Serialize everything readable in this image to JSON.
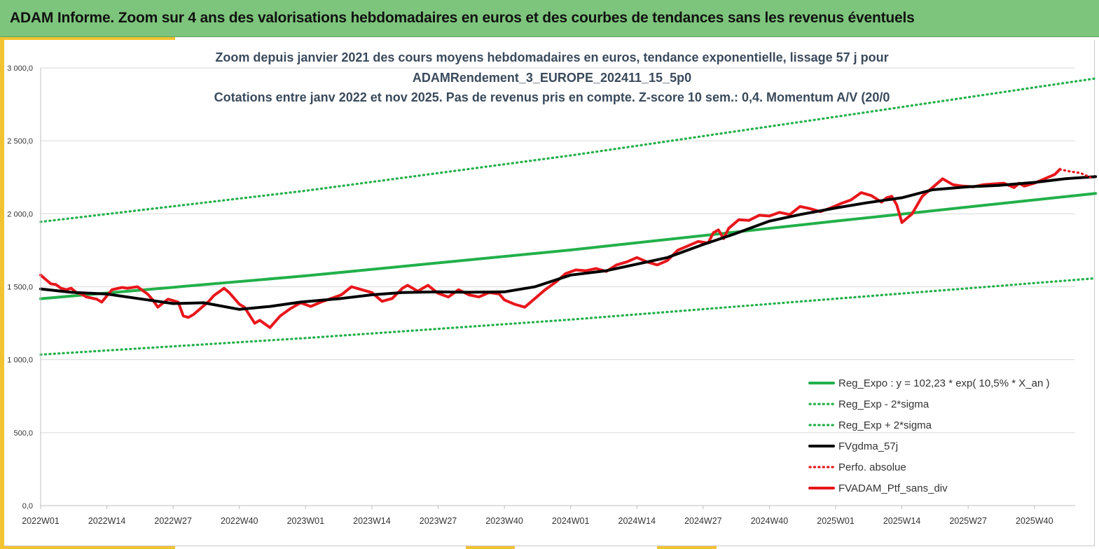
{
  "header": {
    "title": "ADAM Informe. Zoom sur 4 ans des valorisations hebdomadaires en euros et des courbes de tendances sans les revenus éventuels"
  },
  "colors": {
    "banner": "#7dc57c",
    "accent": "#f2c230",
    "reg_expo": "#22b04a",
    "sigma": "#22b04a",
    "moving_avg": "#000000",
    "portfolio": "#e8171c"
  },
  "chart_data": {
    "type": "line",
    "title_lines": [
      "Zoom depuis janvier 2021 des cours moyens hebdomadaires  en euros, tendance exponentielle, lissage 57 j pour",
      "ADAMRendement_3_EUROPE_202411_15_5p0",
      "Cotations  entre janv 2022 et nov 2025. Pas de revenus pris en compte. Z-score 10 sem.: 0,4. Momentum A/V (20/0"
    ],
    "x_start": "2022W01",
    "n_weeks": 204,
    "xticks": [
      "2022W01",
      "2022W14",
      "2022W27",
      "2022W40",
      "2023W01",
      "2023W14",
      "2023W27",
      "2023W40",
      "2024W01",
      "2024W14",
      "2024W27",
      "2024W40",
      "2025W01",
      "2025W14",
      "2025W27",
      "2025W40"
    ],
    "ylim": [
      0,
      3000
    ],
    "yticks": [
      "0,0",
      "500,0",
      "1 000,0",
      "1 500,0",
      "2 000,0",
      "2 500,0",
      "3 000,0"
    ],
    "grid": true,
    "legend_position": "bottom-right",
    "series": [
      {
        "name": "Reg_Expo : y = 102,23 * exp( 10,5% *  X_an )",
        "style": "solid-thick",
        "color": "#22b04a",
        "x": [
          "2022W01",
          "2023W01",
          "2024W01",
          "2025W01",
          "2025W52"
        ],
        "values": [
          1418,
          1575,
          1752,
          1950,
          2140
        ]
      },
      {
        "name": "Reg_Exp - 2*sigma",
        "style": "dotted",
        "color": "#22b04a",
        "x": [
          "2022W01",
          "2023W01",
          "2024W01",
          "2025W01",
          "2025W52"
        ],
        "values": [
          1035,
          1148,
          1275,
          1418,
          1558
        ]
      },
      {
        "name": "Reg_Exp + 2*sigma",
        "style": "dotted",
        "color": "#22b04a",
        "x": [
          "2022W01",
          "2023W01",
          "2024W01",
          "2025W01",
          "2025W52"
        ],
        "values": [
          1945,
          2158,
          2400,
          2665,
          2928
        ]
      },
      {
        "name": "FVgdma_57j",
        "style": "solid-thick",
        "color": "#000000",
        "x": [
          "2022W01",
          "2022W07",
          "2022W14",
          "2022W20",
          "2022W27",
          "2022W33",
          "2022W40",
          "2022W46",
          "2022W52",
          "2023W08",
          "2023W14",
          "2023W20",
          "2023W27",
          "2023W33",
          "2023W40",
          "2023W46",
          "2024W01",
          "2024W08",
          "2024W14",
          "2024W20",
          "2024W27",
          "2024W33",
          "2024W40",
          "2024W46",
          "2025W01",
          "2025W07",
          "2025W14",
          "2025W20",
          "2025W27",
          "2025W33",
          "2025W40",
          "2025W46",
          "2025W52"
        ],
        "values": [
          1485,
          1462,
          1450,
          1420,
          1385,
          1390,
          1345,
          1365,
          1395,
          1420,
          1445,
          1460,
          1465,
          1462,
          1465,
          1500,
          1580,
          1610,
          1655,
          1700,
          1790,
          1860,
          1950,
          1995,
          2040,
          2075,
          2110,
          2165,
          2185,
          2195,
          2215,
          2240,
          2255
        ]
      },
      {
        "name": "Perfo. absolue",
        "style": "dotted",
        "color": "#e8171c",
        "x": [
          "2025W45",
          "2025W47",
          "2025W49",
          "2025W51"
        ],
        "values": [
          2305,
          2290,
          2280,
          2250
        ]
      },
      {
        "name": "FVADAM_Ptf_sans_div",
        "style": "solid-thick",
        "color": "#e8171c",
        "x": [
          "2022W01",
          "2022W02",
          "2022W03",
          "2022W04",
          "2022W05",
          "2022W06",
          "2022W07",
          "2022W08",
          "2022W09",
          "2022W10",
          "2022W12",
          "2022W13",
          "2022W15",
          "2022W17",
          "2022W18",
          "2022W20",
          "2022W22",
          "2022W23",
          "2022W24",
          "2022W26",
          "2022W27",
          "2022W28",
          "2022W29",
          "2022W30",
          "2022W31",
          "2022W32",
          "2022W34",
          "2022W35",
          "2022W37",
          "2022W38",
          "2022W39",
          "2022W40",
          "2022W41",
          "2022W43",
          "2022W44",
          "2022W46",
          "2022W48",
          "2022W50",
          "2022W52",
          "2023W02",
          "2023W04",
          "2023W06",
          "2023W08",
          "2023W10",
          "2023W12",
          "2023W14",
          "2023W16",
          "2023W18",
          "2023W20",
          "2023W21",
          "2023W23",
          "2023W25",
          "2023W27",
          "2023W29",
          "2023W31",
          "2023W33",
          "2023W35",
          "2023W37",
          "2023W39",
          "2023W40",
          "2023W42",
          "2023W44",
          "2023W46",
          "2023W48",
          "2023W50",
          "2023W52",
          "2024W02",
          "2024W04",
          "2024W06",
          "2024W08",
          "2024W10",
          "2024W12",
          "2024W14",
          "2024W16",
          "2024W18",
          "2024W20",
          "2024W22",
          "2024W24",
          "2024W26",
          "2024W28",
          "2024W29",
          "2024W30",
          "2024W31",
          "2024W32",
          "2024W34",
          "2024W36",
          "2024W38",
          "2024W40",
          "2024W42",
          "2024W44",
          "2024W46",
          "2024W48",
          "2024W50",
          "2024W52",
          "2025W02",
          "2025W04",
          "2025W06",
          "2025W08",
          "2025W10",
          "2025W11",
          "2025W12",
          "2025W13",
          "2025W14",
          "2025W16",
          "2025W18",
          "2025W20",
          "2025W22",
          "2025W24",
          "2025W26",
          "2025W28",
          "2025W30",
          "2025W32",
          "2025W34",
          "2025W36",
          "2025W37",
          "2025W38",
          "2025W40",
          "2025W42",
          "2025W44",
          "2025W45"
        ],
        "values": [
          1580,
          1550,
          1520,
          1515,
          1490,
          1480,
          1490,
          1460,
          1450,
          1430,
          1415,
          1395,
          1480,
          1495,
          1490,
          1500,
          1450,
          1410,
          1360,
          1415,
          1405,
          1395,
          1300,
          1290,
          1310,
          1340,
          1400,
          1440,
          1490,
          1460,
          1420,
          1380,
          1360,
          1250,
          1270,
          1220,
          1300,
          1350,
          1390,
          1365,
          1395,
          1420,
          1445,
          1500,
          1480,
          1460,
          1400,
          1420,
          1490,
          1510,
          1470,
          1510,
          1455,
          1430,
          1480,
          1445,
          1430,
          1460,
          1450,
          1410,
          1380,
          1360,
          1420,
          1480,
          1530,
          1590,
          1615,
          1610,
          1625,
          1605,
          1650,
          1670,
          1700,
          1670,
          1650,
          1680,
          1750,
          1780,
          1810,
          1800,
          1870,
          1890,
          1830,
          1900,
          1960,
          1955,
          1990,
          1985,
          2010,
          1995,
          2050,
          2035,
          2015,
          2040,
          2070,
          2095,
          2145,
          2125,
          2080,
          2110,
          2120,
          2060,
          1940,
          2000,
          2120,
          2180,
          2240,
          2200,
          2190,
          2185,
          2200,
          2205,
          2210,
          2180,
          2210,
          2190,
          2210,
          2240,
          2270,
          2305
        ]
      }
    ]
  }
}
